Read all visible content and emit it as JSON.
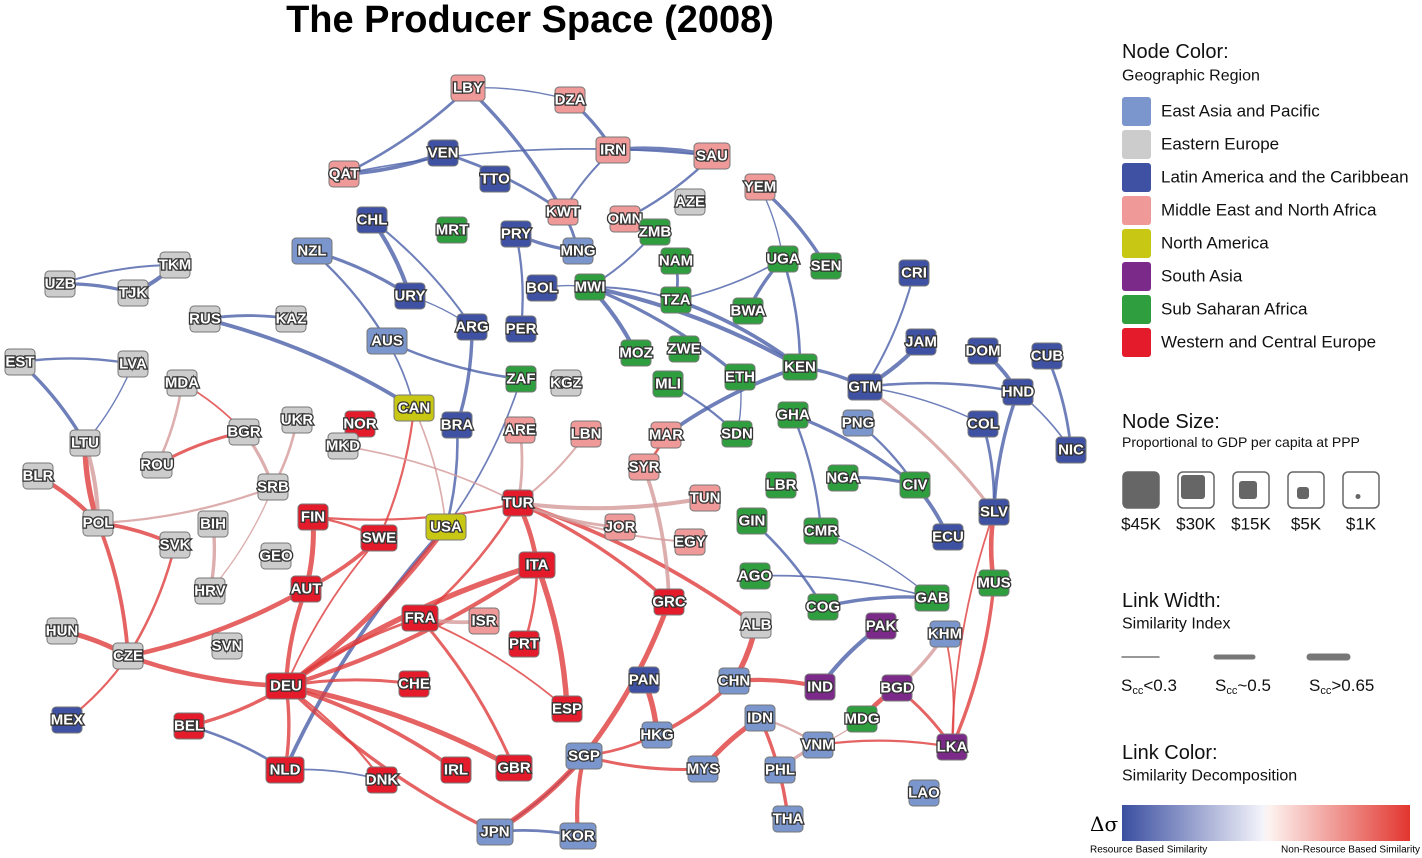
{
  "title": "The Producer Space (2008)",
  "nodes": [
    {
      "label": "LBY",
      "color": "#f09999"
    },
    {
      "label": "DZA",
      "color": "#f09999"
    },
    {
      "label": "IRN",
      "color": "#f09999"
    },
    {
      "label": "SAU",
      "color": "#f09999"
    },
    {
      "label": "VEN",
      "color": "#3f51a3"
    },
    {
      "label": "TTO",
      "color": "#3f51a3"
    },
    {
      "label": "QAT",
      "color": "#f09999"
    },
    {
      "label": "KWT",
      "color": "#f09999"
    },
    {
      "label": "OMN",
      "color": "#f09999"
    },
    {
      "label": "AZE",
      "color": "#cccccc"
    },
    {
      "label": "YEM",
      "color": "#f09999"
    },
    {
      "label": "CHL",
      "color": "#3f51a3"
    },
    {
      "label": "MRT",
      "color": "#2e9e3e"
    },
    {
      "label": "PRY",
      "color": "#3f51a3"
    },
    {
      "label": "MNG",
      "color": "#7b96cc"
    },
    {
      "label": "ZMB",
      "color": "#2e9e3e"
    },
    {
      "label": "NZL",
      "color": "#7b96cc"
    },
    {
      "label": "NAM",
      "color": "#2e9e3e"
    },
    {
      "label": "UGA",
      "color": "#2e9e3e"
    },
    {
      "label": "SEN",
      "color": "#2e9e3e"
    },
    {
      "label": "CRI",
      "color": "#3f51a3"
    },
    {
      "label": "UZB",
      "color": "#cccccc"
    },
    {
      "label": "TKM",
      "color": "#cccccc"
    },
    {
      "label": "BOL",
      "color": "#3f51a3"
    },
    {
      "label": "MWI",
      "color": "#2e9e3e"
    },
    {
      "label": "TJK",
      "color": "#cccccc"
    },
    {
      "label": "URY",
      "color": "#3f51a3"
    },
    {
      "label": "TZA",
      "color": "#2e9e3e"
    },
    {
      "label": "BWA",
      "color": "#2e9e3e"
    },
    {
      "label": "RUS",
      "color": "#cccccc"
    },
    {
      "label": "KAZ",
      "color": "#cccccc"
    },
    {
      "label": "ARG",
      "color": "#3f51a3"
    },
    {
      "label": "PER",
      "color": "#3f51a3"
    },
    {
      "label": "AUS",
      "color": "#7b96cc"
    },
    {
      "label": "MOZ",
      "color": "#2e9e3e"
    },
    {
      "label": "ZWE",
      "color": "#2e9e3e"
    },
    {
      "label": "JAM",
      "color": "#3f51a3"
    },
    {
      "label": "DOM",
      "color": "#3f51a3"
    },
    {
      "label": "CUB",
      "color": "#3f51a3"
    },
    {
      "label": "EST",
      "color": "#cccccc"
    },
    {
      "label": "LVA",
      "color": "#cccccc"
    },
    {
      "label": "KEN",
      "color": "#2e9e3e"
    },
    {
      "label": "ZAF",
      "color": "#2e9e3e"
    },
    {
      "label": "KGZ",
      "color": "#cccccc"
    },
    {
      "label": "MDA",
      "color": "#cccccc"
    },
    {
      "label": "MLI",
      "color": "#2e9e3e"
    },
    {
      "label": "ETH",
      "color": "#2e9e3e"
    },
    {
      "label": "GTM",
      "color": "#3f51a3"
    },
    {
      "label": "HND",
      "color": "#3f51a3"
    },
    {
      "label": "CAN",
      "color": "#c8c814"
    },
    {
      "label": "NOR",
      "color": "#e31b2a"
    },
    {
      "label": "BRA",
      "color": "#3f51a3"
    },
    {
      "label": "ARE",
      "color": "#f09999"
    },
    {
      "label": "LBN",
      "color": "#f09999"
    },
    {
      "label": "MAR",
      "color": "#f09999"
    },
    {
      "label": "SDN",
      "color": "#2e9e3e"
    },
    {
      "label": "GHA",
      "color": "#2e9e3e"
    },
    {
      "label": "PNG",
      "color": "#7b96cc"
    },
    {
      "label": "COL",
      "color": "#3f51a3"
    },
    {
      "label": "NIC",
      "color": "#3f51a3"
    },
    {
      "label": "UKR",
      "color": "#cccccc"
    },
    {
      "label": "BGR",
      "color": "#cccccc"
    },
    {
      "label": "LTU",
      "color": "#cccccc"
    },
    {
      "label": "MKD",
      "color": "#cccccc"
    },
    {
      "label": "ROU",
      "color": "#cccccc"
    },
    {
      "label": "SYR",
      "color": "#f09999"
    },
    {
      "label": "NGA",
      "color": "#2e9e3e"
    },
    {
      "label": "BLR",
      "color": "#cccccc"
    },
    {
      "label": "TUR",
      "color": "#e31b2a"
    },
    {
      "label": "TUN",
      "color": "#f09999"
    },
    {
      "label": "LBR",
      "color": "#2e9e3e"
    },
    {
      "label": "CIV",
      "color": "#2e9e3e"
    },
    {
      "label": "SRB",
      "color": "#cccccc"
    },
    {
      "label": "FIN",
      "color": "#e31b2a"
    },
    {
      "label": "SWE",
      "color": "#e31b2a"
    },
    {
      "label": "USA",
      "color": "#c8c814"
    },
    {
      "label": "POL",
      "color": "#cccccc"
    },
    {
      "label": "BIH",
      "color": "#cccccc"
    },
    {
      "label": "SLV",
      "color": "#3f51a3"
    },
    {
      "label": "GIN",
      "color": "#2e9e3e"
    },
    {
      "label": "CMR",
      "color": "#2e9e3e"
    },
    {
      "label": "JOR",
      "color": "#f09999"
    },
    {
      "label": "EGY",
      "color": "#f09999"
    },
    {
      "label": "ECU",
      "color": "#3f51a3"
    },
    {
      "label": "SVK",
      "color": "#cccccc"
    },
    {
      "label": "GEO",
      "color": "#cccccc"
    },
    {
      "label": "ITA",
      "color": "#e31b2a"
    },
    {
      "label": "AUT",
      "color": "#e31b2a"
    },
    {
      "label": "HRV",
      "color": "#cccccc"
    },
    {
      "label": "MUS",
      "color": "#2e9e3e"
    },
    {
      "label": "AGO",
      "color": "#2e9e3e"
    },
    {
      "label": "GRC",
      "color": "#e31b2a"
    },
    {
      "label": "COG",
      "color": "#2e9e3e"
    },
    {
      "label": "GAB",
      "color": "#2e9e3e"
    },
    {
      "label": "FRA",
      "color": "#e31b2a"
    },
    {
      "label": "ISR",
      "color": "#f09999"
    },
    {
      "label": "ALB",
      "color": "#cccccc"
    },
    {
      "label": "PAK",
      "color": "#7b2a8a"
    },
    {
      "label": "HUN",
      "color": "#cccccc"
    },
    {
      "label": "KHM",
      "color": "#7b96cc"
    },
    {
      "label": "SVN",
      "color": "#cccccc"
    },
    {
      "label": "PRT",
      "color": "#e31b2a"
    },
    {
      "label": "CZE",
      "color": "#cccccc"
    },
    {
      "label": "CHE",
      "color": "#e31b2a"
    },
    {
      "label": "PAN",
      "color": "#3f51a3"
    },
    {
      "label": "CHN",
      "color": "#7b96cc"
    },
    {
      "label": "IND",
      "color": "#7b2a8a"
    },
    {
      "label": "DEU",
      "color": "#e31b2a"
    },
    {
      "label": "BGD",
      "color": "#7b2a8a"
    },
    {
      "label": "ESP",
      "color": "#e31b2a"
    },
    {
      "label": "MDG",
      "color": "#2e9e3e"
    },
    {
      "label": "MEX",
      "color": "#3f51a3"
    },
    {
      "label": "BEL",
      "color": "#e31b2a"
    },
    {
      "label": "HKG",
      "color": "#7b96cc"
    },
    {
      "label": "IDN",
      "color": "#7b96cc"
    },
    {
      "label": "VNM",
      "color": "#7b96cc"
    },
    {
      "label": "LKA",
      "color": "#7b2a8a"
    },
    {
      "label": "NLD",
      "color": "#e31b2a"
    },
    {
      "label": "IRL",
      "color": "#e31b2a"
    },
    {
      "label": "GBR",
      "color": "#e31b2a"
    },
    {
      "label": "SGP",
      "color": "#7b96cc"
    },
    {
      "label": "DNK",
      "color": "#e31b2a"
    },
    {
      "label": "MYS",
      "color": "#7b96cc"
    },
    {
      "label": "PHL",
      "color": "#7b96cc"
    },
    {
      "label": "LAO",
      "color": "#7b96cc"
    },
    {
      "label": "THA",
      "color": "#7b96cc"
    },
    {
      "label": "JPN",
      "color": "#7b96cc"
    },
    {
      "label": "KOR",
      "color": "#7b96cc"
    }
  ],
  "legend": {
    "node_color": {
      "title": "Node Color:",
      "subtitle": "Geographic Region",
      "items": [
        {
          "label": "East Asia and Pacific",
          "color": "#7b96cc"
        },
        {
          "label": "Eastern Europe",
          "color": "#cccccc"
        },
        {
          "label": "Latin America and the Caribbean",
          "color": "#3f51a3"
        },
        {
          "label": "Middle East and North Africa",
          "color": "#f09999"
        },
        {
          "label": "North America",
          "color": "#c8c814"
        },
        {
          "label": "South Asia",
          "color": "#7b2a8a"
        },
        {
          "label": "Sub Saharan Africa",
          "color": "#2e9e3e"
        },
        {
          "label": "Western and Central Europe",
          "color": "#e31b2a"
        }
      ]
    },
    "node_size": {
      "title": "Node Size:",
      "subtitle": "Proportional to GDP per capita at PPP",
      "items": [
        "$45K",
        "$30K",
        "$15K",
        "$5K",
        "$1K"
      ]
    },
    "link_width": {
      "title": "Link Width:",
      "subtitle": "Similarity Index",
      "items": [
        {
          "main": "S",
          "sub": "cc",
          "rest": "<0.3"
        },
        {
          "main": "S",
          "sub": "cc",
          "rest": "~0.5"
        },
        {
          "main": "S",
          "sub": "cc",
          "rest": ">0.65"
        }
      ]
    },
    "link_color": {
      "title": "Link Color:",
      "subtitle": "Similarity Decomposition",
      "symbol": "Δσ",
      "left_label": "Resource Based Similarity",
      "right_label": "Non-Resource Based Similarity"
    }
  }
}
